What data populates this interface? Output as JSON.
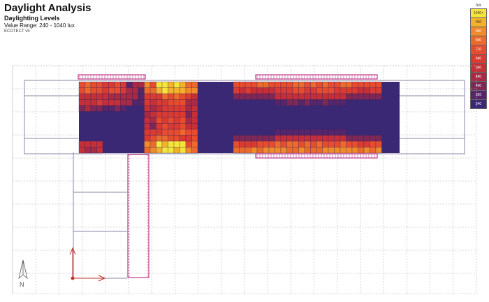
{
  "header": {
    "title": "Daylight Analysis",
    "subtitle": "Daylighting Levels",
    "range": "Value Range: 240 - 1040 lux",
    "note": "ECOTECT v5"
  },
  "legend": {
    "unit": "lux",
    "entries": [
      {
        "label": "1040+",
        "color": "#f5e53a"
      },
      {
        "label": "960",
        "color": "#f4b12b"
      },
      {
        "label": "880",
        "color": "#f08a2a"
      },
      {
        "label": "800",
        "color": "#ec6b2c"
      },
      {
        "label": "720",
        "color": "#e84c2e"
      },
      {
        "label": "640",
        "color": "#d93b32"
      },
      {
        "label": "560",
        "color": "#c62f38"
      },
      {
        "label": "480",
        "color": "#a82a45"
      },
      {
        "label": "400",
        "color": "#7f2856"
      },
      {
        "label": "320",
        "color": "#55266a"
      },
      {
        "label": "240",
        "color": "#3a2874"
      }
    ]
  },
  "compass": {
    "label": "N"
  },
  "colors": {
    "base": "#3a2874",
    "grid": "#b5b5b5",
    "outline": "#8d84a6",
    "window": "#c0388a"
  }
}
